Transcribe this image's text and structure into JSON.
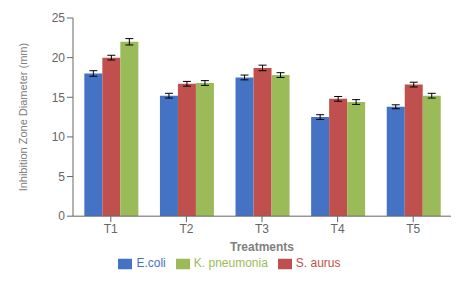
{
  "chart_data": {
    "type": "bar",
    "categories": [
      "T1",
      "T2",
      "T3",
      "T4",
      "T5"
    ],
    "series": [
      {
        "name": "E.coli",
        "color": "#4472C4",
        "values": [
          18.0,
          15.2,
          17.5,
          12.5,
          13.8
        ],
        "errors": [
          0.35,
          0.3,
          0.3,
          0.3,
          0.25
        ]
      },
      {
        "name": "S. aurus",
        "color": "#C0504D",
        "values": [
          20.0,
          16.7,
          18.7,
          14.8,
          16.6
        ],
        "errors": [
          0.3,
          0.3,
          0.35,
          0.3,
          0.3
        ]
      },
      {
        "name": "K. pneumonia",
        "color": "#9BBB59",
        "values": [
          22.0,
          16.8,
          17.8,
          14.4,
          15.2
        ],
        "errors": [
          0.4,
          0.3,
          0.3,
          0.3,
          0.3
        ]
      }
    ],
    "ylabel": "Inhibition Zone Diameter (mm)",
    "xlabel": "Treatments",
    "ylim": [
      0,
      25
    ],
    "yticks": [
      0,
      5,
      10,
      15,
      20,
      25
    ],
    "grid": false,
    "legend": "bottom"
  }
}
